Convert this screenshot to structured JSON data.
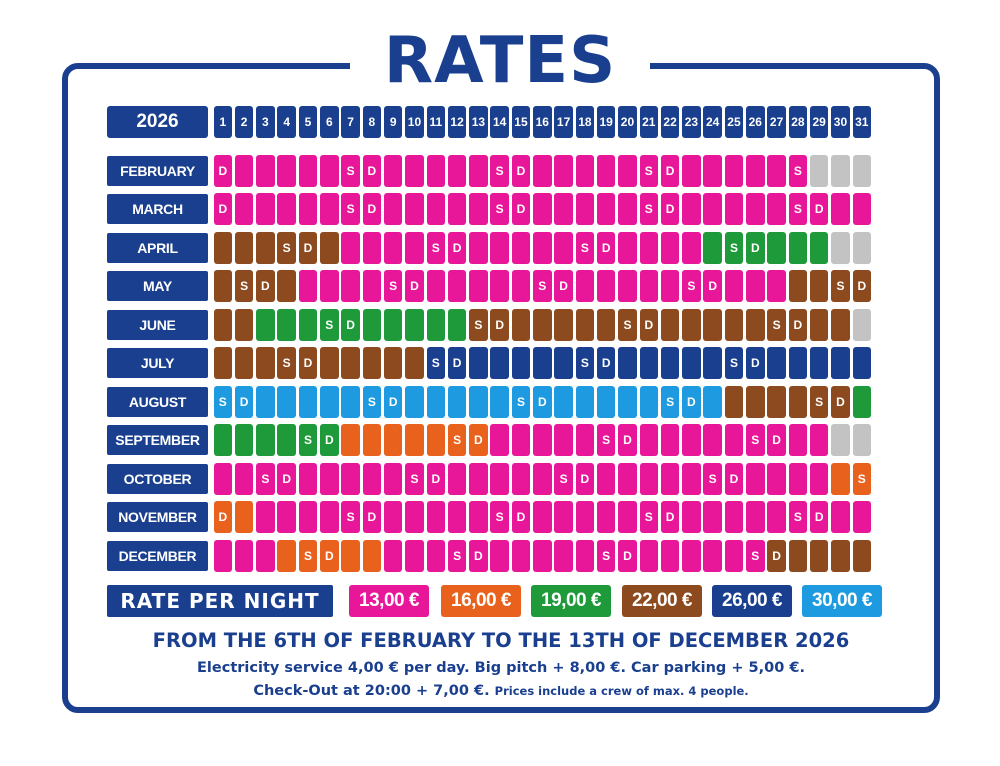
{
  "title": "RATES",
  "year": "2026",
  "days": [
    "1",
    "2",
    "3",
    "4",
    "5",
    "6",
    "7",
    "8",
    "9",
    "10",
    "11",
    "12",
    "13",
    "14",
    "15",
    "16",
    "17",
    "18",
    "19",
    "20",
    "21",
    "22",
    "23",
    "24",
    "25",
    "26",
    "27",
    "28",
    "29",
    "30",
    "31"
  ],
  "colors": {
    "p": "#e8179a",
    "o": "#e8621e",
    "g": "#1e9a3a",
    "b": "#8c4a1e",
    "n": "#1a3f8f",
    "c": "#1e9be0",
    "x": "#c3c3c3"
  },
  "months": [
    {
      "name": "FEBRUARY",
      "rates": "ppppppppppppppppppppppppppppxxx",
      "marks": "D     SD     SD     SD     S   "
    },
    {
      "name": "MARCH",
      "rates": "ppppppppppppppppppppppppppppppp",
      "marks": "D     SD     SD     SD     SD  "
    },
    {
      "name": "APRIL",
      "rates": "bbbbbbpppppppppppppppppggggggx",
      "marks": "   SD     SD     SD     SD     "
    },
    {
      "name": "MAY",
      "rates": "bbbbpppppppppppppppppppppppbbbb",
      "marks": " SD     SD     SD     SD     SD"
    },
    {
      "name": "JUNE",
      "rates": "bbggggggggggbbbbbbbbbbbbbbbbbbx",
      "marks": "     SD     SD     SD     SD   "
    },
    {
      "name": "JULY",
      "rates": "bbbbbbbbbbnnnnnnnnnnnnnnnnnnnnnn",
      "marks": "   SD     SD     SD     SD     "
    },
    {
      "name": "AUGUST",
      "rates": "ccccccccccccccccccccccccbbbbbbg",
      "marks": "SD     SD     SD     SD     SD "
    },
    {
      "name": "SEPTEMBER",
      "rates": "ggggggoooooooppppppppppppppppx",
      "marks": "    SD     SD     SD     SD    "
    },
    {
      "name": "OCTOBER",
      "rates": "pppppppppppppppppppppppppppppoo",
      "marks": "  SD     SD     SD     SD     S"
    },
    {
      "name": "NOVEMBER",
      "rates": "oopppppppppppppppppppppppppppppx",
      "marks": "D     SD     SD     SD     SD  "
    },
    {
      "name": "DECEMBER",
      "rates": "pppoooooppppppppppppppppppbbbbbb",
      "marks": "    SD     SD     SD     SD    "
    }
  ],
  "legend": {
    "label": "RATE PER NIGHT",
    "rates": [
      {
        "value": "13,00 €",
        "color": "#e8179a"
      },
      {
        "value": "16,00 €",
        "color": "#e8621e"
      },
      {
        "value": "19,00 €",
        "color": "#1e9a3a"
      },
      {
        "value": "22,00 €",
        "color": "#8c4a1e"
      },
      {
        "value": "26,00 €",
        "color": "#1a3f8f"
      },
      {
        "value": "30,00 €",
        "color": "#1e9be0"
      }
    ]
  },
  "period": "FROM THE 6TH OF FEBRUARY TO THE 13TH OF DECEMBER 2026",
  "notes": {
    "line1": "Electricity service 4,00 € per day. Big pitch + 8,00 €. Car parking + 5,00 €.",
    "line2": "Check-Out at 20:00 + 7,00 €.",
    "line2_small": "Prices include a crew of max. 4 people."
  }
}
